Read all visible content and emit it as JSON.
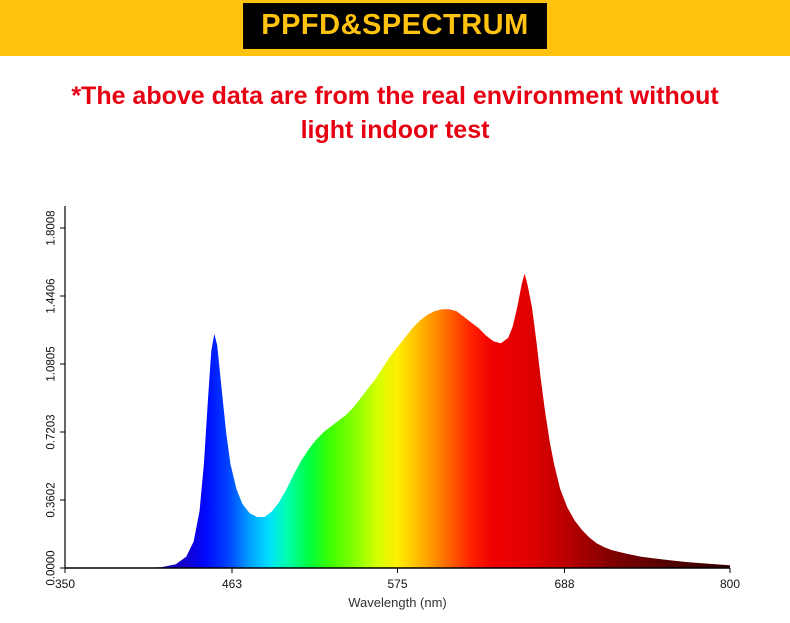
{
  "banner": {
    "title": "PPFD&SPECTRUM",
    "bg_color": "#FFC20E",
    "bar_color": "#000000",
    "title_color": "#FFC20E"
  },
  "note": {
    "line1": "*The above data are from the real environment without",
    "line2": "light indoor test",
    "color": "#E60012"
  },
  "chart_data": {
    "type": "area",
    "title": "",
    "xlabel": "Wavelength (nm)",
    "ylabel": "",
    "xlim": [
      350,
      800
    ],
    "ylim": [
      0,
      1.8008
    ],
    "grid": false,
    "legend": false,
    "x_ticks": [
      350,
      463,
      575,
      688,
      800
    ],
    "y_ticks": [
      "0.0000",
      "0.3602",
      "0.7203",
      "1.0805",
      "1.4406",
      "1.8008"
    ],
    "y_tick_values": [
      0,
      0.3602,
      0.7203,
      1.0805,
      1.4406,
      1.8008
    ],
    "points": [
      [
        350,
        0
      ],
      [
        400,
        0
      ],
      [
        415,
        0.004
      ],
      [
        425,
        0.02
      ],
      [
        432,
        0.06
      ],
      [
        437,
        0.14
      ],
      [
        441,
        0.3
      ],
      [
        444,
        0.55
      ],
      [
        447,
        0.92
      ],
      [
        449,
        1.15
      ],
      [
        451,
        1.24
      ],
      [
        453,
        1.18
      ],
      [
        456,
        0.95
      ],
      [
        459,
        0.72
      ],
      [
        462,
        0.55
      ],
      [
        466,
        0.42
      ],
      [
        470,
        0.34
      ],
      [
        475,
        0.29
      ],
      [
        480,
        0.27
      ],
      [
        485,
        0.27
      ],
      [
        490,
        0.3
      ],
      [
        495,
        0.35
      ],
      [
        500,
        0.42
      ],
      [
        505,
        0.5
      ],
      [
        510,
        0.57
      ],
      [
        515,
        0.63
      ],
      [
        520,
        0.68
      ],
      [
        525,
        0.72
      ],
      [
        530,
        0.75
      ],
      [
        535,
        0.78
      ],
      [
        540,
        0.81
      ],
      [
        545,
        0.85
      ],
      [
        550,
        0.9
      ],
      [
        555,
        0.95
      ],
      [
        560,
        1.0
      ],
      [
        565,
        1.06
      ],
      [
        570,
        1.12
      ],
      [
        575,
        1.17
      ],
      [
        580,
        1.22
      ],
      [
        585,
        1.27
      ],
      [
        590,
        1.31
      ],
      [
        595,
        1.34
      ],
      [
        600,
        1.36
      ],
      [
        605,
        1.37
      ],
      [
        610,
        1.37
      ],
      [
        615,
        1.36
      ],
      [
        620,
        1.33
      ],
      [
        625,
        1.3
      ],
      [
        630,
        1.27
      ],
      [
        635,
        1.23
      ],
      [
        640,
        1.2
      ],
      [
        645,
        1.19
      ],
      [
        650,
        1.22
      ],
      [
        653,
        1.28
      ],
      [
        656,
        1.38
      ],
      [
        659,
        1.5
      ],
      [
        661,
        1.56
      ],
      [
        663,
        1.5
      ],
      [
        666,
        1.38
      ],
      [
        669,
        1.2
      ],
      [
        672,
        1.0
      ],
      [
        675,
        0.82
      ],
      [
        678,
        0.67
      ],
      [
        681,
        0.55
      ],
      [
        685,
        0.42
      ],
      [
        690,
        0.32
      ],
      [
        695,
        0.25
      ],
      [
        700,
        0.2
      ],
      [
        705,
        0.16
      ],
      [
        710,
        0.13
      ],
      [
        715,
        0.11
      ],
      [
        720,
        0.095
      ],
      [
        730,
        0.075
      ],
      [
        740,
        0.06
      ],
      [
        750,
        0.05
      ],
      [
        760,
        0.04
      ],
      [
        770,
        0.032
      ],
      [
        780,
        0.026
      ],
      [
        790,
        0.02
      ],
      [
        800,
        0.015
      ]
    ],
    "gradient_stops": [
      {
        "nm": 350,
        "color": "#2000a0"
      },
      {
        "nm": 430,
        "color": "#1500c8"
      },
      {
        "nm": 445,
        "color": "#0008ff"
      },
      {
        "nm": 460,
        "color": "#0040ff"
      },
      {
        "nm": 475,
        "color": "#00a0ff"
      },
      {
        "nm": 488,
        "color": "#00e0ff"
      },
      {
        "nm": 500,
        "color": "#00ffb0"
      },
      {
        "nm": 515,
        "color": "#00ff40"
      },
      {
        "nm": 530,
        "color": "#40ff00"
      },
      {
        "nm": 548,
        "color": "#90ff00"
      },
      {
        "nm": 562,
        "color": "#d8ff00"
      },
      {
        "nm": 575,
        "color": "#ffee00"
      },
      {
        "nm": 588,
        "color": "#ffc000"
      },
      {
        "nm": 600,
        "color": "#ff9000"
      },
      {
        "nm": 612,
        "color": "#ff5a00"
      },
      {
        "nm": 625,
        "color": "#ff2000"
      },
      {
        "nm": 640,
        "color": "#f00000"
      },
      {
        "nm": 665,
        "color": "#e00000"
      },
      {
        "nm": 690,
        "color": "#b80000"
      },
      {
        "nm": 720,
        "color": "#800000"
      },
      {
        "nm": 760,
        "color": "#500000"
      },
      {
        "nm": 800,
        "color": "#300000"
      }
    ],
    "axis_color": "#000000",
    "tick_label_color": "#111111",
    "axis_title_color": "#333333"
  }
}
